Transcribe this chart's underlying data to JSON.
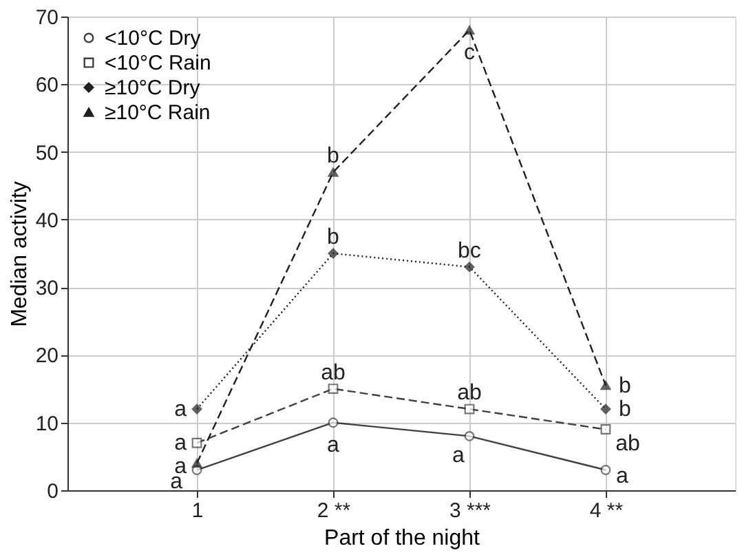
{
  "chart_data": {
    "type": "line",
    "xlabel": "Part of the night",
    "ylabel": "Median activity",
    "categories": [
      "1",
      "2 **",
      "3 ***",
      "4 **"
    ],
    "ylim": [
      0,
      70
    ],
    "yticks": [
      0,
      10,
      20,
      30,
      40,
      50,
      60,
      70
    ],
    "grid": true,
    "legend": "top left",
    "series": [
      {
        "name": "<10°C Dry",
        "color": "#404040",
        "marker": "circle",
        "line_style": "solid",
        "values": [
          3,
          10,
          8,
          3
        ]
      },
      {
        "name": "<10°C Rain",
        "color": "#404040",
        "marker": "square",
        "line_style": "dashed",
        "values": [
          7,
          15,
          12,
          9
        ]
      },
      {
        "name": "≥10°C Dry",
        "color": "#202020",
        "marker": "diamond",
        "line_style": "dotted",
        "values": [
          12,
          35,
          33,
          12
        ]
      },
      {
        "name": "≥10°C Rain",
        "color": "#202020",
        "marker": "triangle",
        "line_style": "dashed",
        "values": [
          4,
          47,
          68,
          15.5
        ]
      }
    ],
    "annotations": [
      {
        "text": "a",
        "x": "1",
        "y": 12
      },
      {
        "text": "a",
        "x": "1",
        "y": 7
      },
      {
        "text": "a",
        "x": "1",
        "y": 4
      },
      {
        "text": "a",
        "x": "1",
        "y": 3
      },
      {
        "text": "b",
        "x": "2 **",
        "y": 47
      },
      {
        "text": "b",
        "x": "2 **",
        "y": 35
      },
      {
        "text": "ab",
        "x": "2 **",
        "y": 15
      },
      {
        "text": "a",
        "x": "2 **",
        "y": 10
      },
      {
        "text": "c",
        "x": "3 ***",
        "y": 68
      },
      {
        "text": "bc",
        "x": "3 ***",
        "y": 33
      },
      {
        "text": "ab",
        "x": "3 ***",
        "y": 12
      },
      {
        "text": "a",
        "x": "3 ***",
        "y": 8
      },
      {
        "text": "b",
        "x": "4 **",
        "y": 15.5
      },
      {
        "text": "b",
        "x": "4 **",
        "y": 12
      },
      {
        "text": "ab",
        "x": "4 **",
        "y": 9
      },
      {
        "text": "a",
        "x": "4 **",
        "y": 3
      }
    ]
  }
}
